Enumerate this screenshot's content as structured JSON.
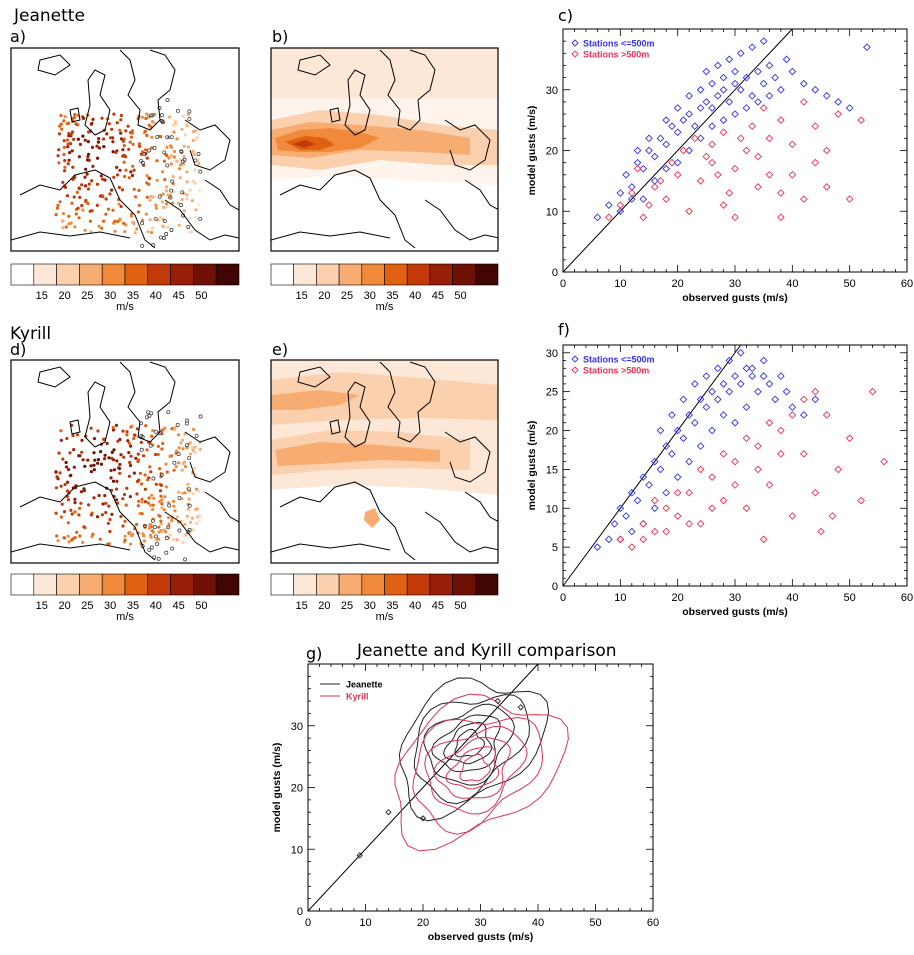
{
  "storm_labels": {
    "jeanette": "Jeanette",
    "kyrill": "Kyrill"
  },
  "panel_labels": {
    "a": "a)",
    "b": "b)",
    "c": "c)",
    "d": "d)",
    "e": "e)",
    "f": "f)",
    "g": "g)"
  },
  "colorbar": {
    "ticks": [
      "15",
      "20",
      "25",
      "30",
      "35",
      "40",
      "45",
      "50"
    ],
    "unit": "m/s",
    "colors": [
      "#ffffff",
      "#fde7d6",
      "#fbd0ae",
      "#f7ad72",
      "#f08a3a",
      "#e16112",
      "#c23a0a",
      "#981e07",
      "#6f1004",
      "#420602"
    ]
  },
  "colors": {
    "blue_stations": "#3333ee",
    "red_stations": "#ee3355",
    "jeanette_contour": "#222222",
    "kyrill_contour": "#dd3355"
  },
  "legend_scatter": {
    "low": "Stations <=500m",
    "high": "Stations >500m"
  },
  "legend_contour": {
    "jeanette": "Jeanette",
    "kyrill": "Kyrill"
  },
  "chart_title_g": "Jeanette and Kyrill comparison",
  "chart_data": [
    {
      "panel": "c",
      "type": "scatter",
      "xlabel": "observed gusts (m/s)",
      "ylabel": "model gusts (m/s)",
      "xlim": [
        0,
        60
      ],
      "ylim": [
        0,
        40
      ],
      "xticks": [
        0,
        10,
        20,
        30,
        40,
        50,
        60
      ],
      "yticks": [
        0,
        10,
        20,
        30
      ],
      "reference_line": "1:1",
      "legend_position": "top-left",
      "series": [
        {
          "name": "Stations <=500m",
          "color": "#3333ee",
          "points": [
            [
              6,
              9
            ],
            [
              8,
              11
            ],
            [
              10,
              13
            ],
            [
              11,
              16
            ],
            [
              12,
              14
            ],
            [
              13,
              18
            ],
            [
              14,
              17
            ],
            [
              15,
              20
            ],
            [
              16,
              19
            ],
            [
              17,
              22
            ],
            [
              18,
              21
            ],
            [
              19,
              24
            ],
            [
              20,
              23
            ],
            [
              21,
              25
            ],
            [
              22,
              26
            ],
            [
              23,
              24
            ],
            [
              24,
              27
            ],
            [
              25,
              28
            ],
            [
              26,
              27
            ],
            [
              27,
              29
            ],
            [
              28,
              30
            ],
            [
              29,
              28
            ],
            [
              30,
              31
            ],
            [
              31,
              30
            ],
            [
              32,
              32
            ],
            [
              33,
              29
            ],
            [
              34,
              33
            ],
            [
              35,
              31
            ],
            [
              36,
              34
            ],
            [
              37,
              32
            ],
            [
              38,
              30
            ],
            [
              39,
              35
            ],
            [
              40,
              33
            ],
            [
              42,
              31
            ],
            [
              44,
              30
            ],
            [
              46,
              29
            ],
            [
              48,
              28
            ],
            [
              50,
              27
            ],
            [
              53,
              37
            ],
            [
              10,
              10
            ],
            [
              12,
              12
            ],
            [
              14,
              12
            ],
            [
              16,
              15
            ],
            [
              18,
              17
            ],
            [
              20,
              18
            ],
            [
              22,
              20
            ],
            [
              24,
              22
            ],
            [
              26,
              24
            ],
            [
              28,
              25
            ],
            [
              30,
              26
            ],
            [
              32,
              27
            ],
            [
              34,
              28
            ],
            [
              36,
              29
            ],
            [
              25,
              33
            ],
            [
              27,
              34
            ],
            [
              29,
              35
            ],
            [
              31,
              36
            ],
            [
              33,
              37
            ],
            [
              35,
              38
            ],
            [
              20,
              27
            ],
            [
              22,
              29
            ],
            [
              18,
              25
            ],
            [
              15,
              22
            ],
            [
              13,
              20
            ],
            [
              24,
              30
            ],
            [
              26,
              31
            ],
            [
              28,
              32
            ],
            [
              30,
              33
            ]
          ]
        },
        {
          "name": "Stations >500m",
          "color": "#ee3355",
          "points": [
            [
              8,
              9
            ],
            [
              10,
              11
            ],
            [
              12,
              13
            ],
            [
              14,
              9
            ],
            [
              16,
              14
            ],
            [
              18,
              12
            ],
            [
              20,
              16
            ],
            [
              22,
              10
            ],
            [
              24,
              15
            ],
            [
              26,
              18
            ],
            [
              28,
              11
            ],
            [
              30,
              17
            ],
            [
              32,
              20
            ],
            [
              34,
              14
            ],
            [
              36,
              22
            ],
            [
              38,
              9
            ],
            [
              40,
              16
            ],
            [
              42,
              12
            ],
            [
              44,
              24
            ],
            [
              46,
              14
            ],
            [
              48,
              26
            ],
            [
              50,
              12
            ],
            [
              52,
              25
            ],
            [
              40,
              21
            ],
            [
              42,
              28
            ],
            [
              44,
              18
            ],
            [
              46,
              20
            ],
            [
              38,
              25
            ],
            [
              35,
              27
            ],
            [
              33,
              24
            ],
            [
              31,
              22
            ],
            [
              29,
              13
            ],
            [
              27,
              16
            ],
            [
              25,
              19
            ],
            [
              23,
              22
            ],
            [
              21,
              20
            ],
            [
              19,
              18
            ],
            [
              17,
              15
            ],
            [
              15,
              11
            ],
            [
              13,
              17
            ],
            [
              26,
              21
            ],
            [
              28,
              23
            ],
            [
              30,
              9
            ],
            [
              34,
              19
            ],
            [
              36,
              16
            ],
            [
              38,
              13
            ]
          ]
        }
      ]
    },
    {
      "panel": "f",
      "type": "scatter",
      "xlabel": "observed gusts (m/s)",
      "ylabel": "model gusts (m/s)",
      "xlim": [
        0,
        60
      ],
      "ylim": [
        0,
        31
      ],
      "xticks": [
        0,
        10,
        20,
        30,
        40,
        50,
        60
      ],
      "yticks": [
        0,
        5,
        10,
        15,
        20,
        25,
        30
      ],
      "reference_line": "1:1",
      "legend_position": "top-left",
      "series": [
        {
          "name": "Stations <=500m",
          "color": "#3333ee",
          "points": [
            [
              6,
              5
            ],
            [
              8,
              6
            ],
            [
              9,
              8
            ],
            [
              10,
              10
            ],
            [
              11,
              9
            ],
            [
              12,
              12
            ],
            [
              13,
              11
            ],
            [
              14,
              14
            ],
            [
              15,
              13
            ],
            [
              16,
              16
            ],
            [
              17,
              15
            ],
            [
              18,
              18
            ],
            [
              19,
              17
            ],
            [
              20,
              20
            ],
            [
              21,
              19
            ],
            [
              22,
              22
            ],
            [
              23,
              21
            ],
            [
              24,
              24
            ],
            [
              25,
              23
            ],
            [
              26,
              25
            ],
            [
              27,
              24
            ],
            [
              28,
              26
            ],
            [
              29,
              25
            ],
            [
              30,
              27
            ],
            [
              31,
              26
            ],
            [
              32,
              28
            ],
            [
              33,
              27
            ],
            [
              34,
              25
            ],
            [
              35,
              29
            ],
            [
              36,
              26
            ],
            [
              37,
              24
            ],
            [
              38,
              27
            ],
            [
              39,
              25
            ],
            [
              40,
              23
            ],
            [
              42,
              22
            ],
            [
              44,
              24
            ],
            [
              10,
              6
            ],
            [
              12,
              7
            ],
            [
              14,
              8
            ],
            [
              16,
              10
            ],
            [
              18,
              12
            ],
            [
              20,
              14
            ],
            [
              22,
              16
            ],
            [
              24,
              18
            ],
            [
              26,
              20
            ],
            [
              28,
              22
            ],
            [
              30,
              21
            ],
            [
              32,
              23
            ],
            [
              25,
              27
            ],
            [
              27,
              28
            ],
            [
              29,
              29
            ],
            [
              31,
              30
            ],
            [
              33,
              28
            ],
            [
              35,
              27
            ],
            [
              23,
              26
            ],
            [
              21,
              24
            ],
            [
              19,
              22
            ],
            [
              17,
              20
            ]
          ]
        },
        {
          "name": "Stations >500m",
          "color": "#ee3355",
          "points": [
            [
              10,
              6
            ],
            [
              12,
              5
            ],
            [
              14,
              8
            ],
            [
              16,
              7
            ],
            [
              18,
              10
            ],
            [
              20,
              9
            ],
            [
              22,
              12
            ],
            [
              24,
              8
            ],
            [
              26,
              14
            ],
            [
              28,
              11
            ],
            [
              30,
              16
            ],
            [
              32,
              10
            ],
            [
              34,
              18
            ],
            [
              36,
              13
            ],
            [
              38,
              20
            ],
            [
              40,
              9
            ],
            [
              42,
              17
            ],
            [
              44,
              12
            ],
            [
              46,
              22
            ],
            [
              48,
              15
            ],
            [
              50,
              19
            ],
            [
              52,
              11
            ],
            [
              54,
              25
            ],
            [
              56,
              16
            ],
            [
              40,
              22
            ],
            [
              42,
              24
            ],
            [
              44,
              25
            ],
            [
              38,
              17
            ],
            [
              36,
              21
            ],
            [
              34,
              15
            ],
            [
              32,
              19
            ],
            [
              30,
              13
            ],
            [
              28,
              17
            ],
            [
              26,
              10
            ],
            [
              24,
              15
            ],
            [
              22,
              8
            ],
            [
              20,
              12
            ],
            [
              18,
              7
            ],
            [
              16,
              11
            ],
            [
              14,
              6
            ],
            [
              45,
              7
            ],
            [
              47,
              9
            ],
            [
              35,
              6
            ]
          ]
        }
      ]
    },
    {
      "panel": "g",
      "type": "contour",
      "title": "Jeanette and Kyrill comparison",
      "xlabel": "observed gusts (m/s)",
      "ylabel": "model gusts (m/s)",
      "xlim": [
        0,
        60
      ],
      "ylim": [
        0,
        40
      ],
      "xticks": [
        0,
        10,
        20,
        30,
        40,
        50,
        60
      ],
      "yticks": [
        0,
        10,
        20,
        30
      ],
      "reference_line": "1:1",
      "legend_position": "top-left",
      "series": [
        {
          "name": "Jeanette",
          "color": "#222222",
          "center": [
            28,
            27
          ],
          "radii": [
            [
              14,
              9
            ],
            [
              11,
              7
            ],
            [
              8,
              5.5
            ],
            [
              6,
              4
            ],
            [
              4,
              3
            ],
            [
              2.5,
              2
            ]
          ],
          "tilt_deg": 35
        },
        {
          "name": "Kyrill",
          "color": "#dd3355",
          "center": [
            29,
            23
          ],
          "radii": [
            [
              16,
              10
            ],
            [
              12,
              8
            ],
            [
              9,
              6
            ],
            [
              6.5,
              4.5
            ],
            [
              4.5,
              3
            ],
            [
              2.5,
              2
            ]
          ],
          "tilt_deg": 30
        }
      ]
    }
  ]
}
